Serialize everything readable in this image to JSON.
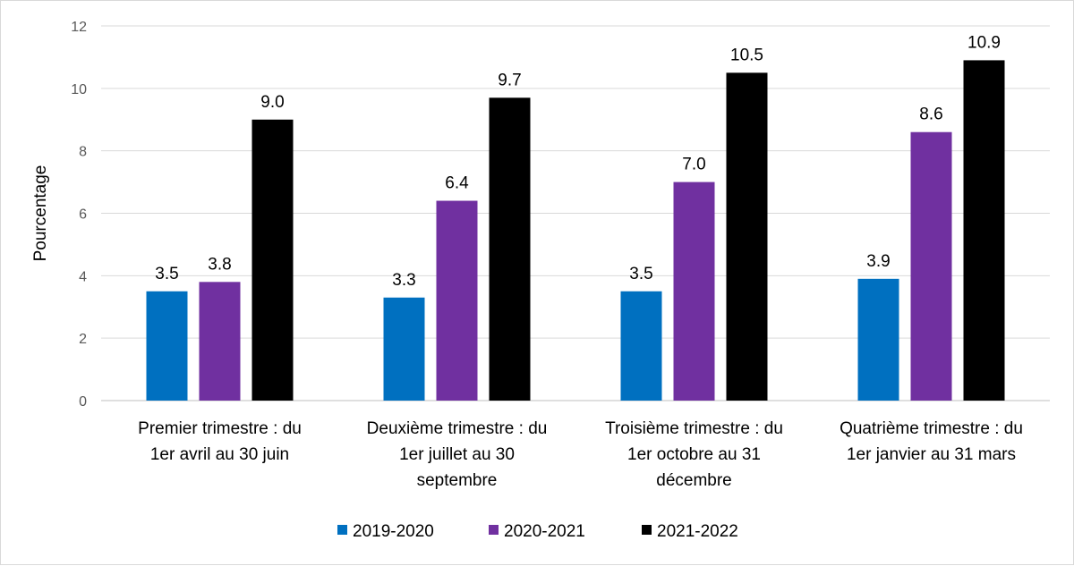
{
  "chart_data": {
    "type": "bar",
    "ylabel": "Pourcentage",
    "ylim": [
      0,
      12
    ],
    "yticks": [
      0,
      2,
      4,
      6,
      8,
      10,
      12
    ],
    "grid": true,
    "legend_position": "bottom",
    "categories": [
      [
        "Premier trimestre : du",
        "1er avril au 30 juin"
      ],
      [
        "Deuxième trimestre : du",
        "1er juillet au 30",
        "septembre"
      ],
      [
        "Troisième trimestre : du",
        "1er octobre au 31",
        "décembre"
      ],
      [
        "Quatrième trimestre : du",
        "1er janvier au 31 mars"
      ]
    ],
    "series": [
      {
        "name": "2019-2020",
        "color": "#0070c0",
        "values": [
          3.5,
          3.3,
          3.5,
          3.9
        ],
        "labels": [
          "3.5",
          "3.3",
          "3.5",
          "3.9"
        ]
      },
      {
        "name": "2020-2021",
        "color": "#7030a0",
        "values": [
          3.8,
          6.4,
          7.0,
          8.6
        ],
        "labels": [
          "3.8",
          "6.4",
          "7.0",
          "8.6"
        ]
      },
      {
        "name": "2021-2022",
        "color": "#000000",
        "values": [
          9.0,
          9.7,
          10.5,
          10.9
        ],
        "labels": [
          "9.0",
          "9.7",
          "10.5",
          "10.9"
        ]
      }
    ]
  }
}
